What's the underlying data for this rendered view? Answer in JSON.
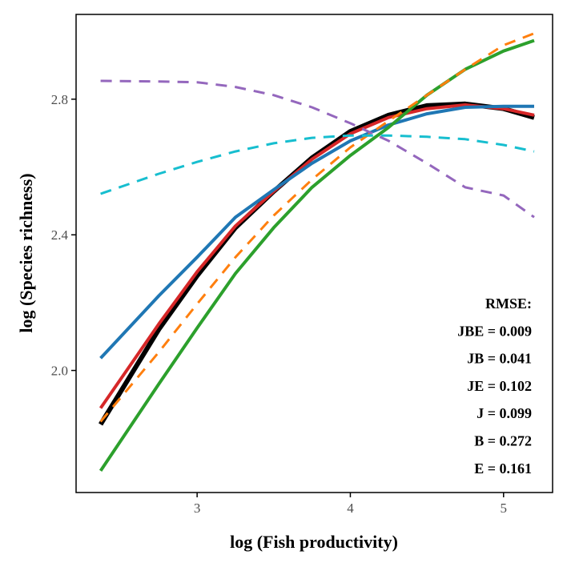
{
  "chart_data": {
    "type": "line",
    "xlabel": "log (Fish productivity)",
    "ylabel": "log (Species richness)",
    "xlim": [
      2.21,
      5.32
    ],
    "ylim": [
      1.64,
      3.05
    ],
    "xticks": [
      3,
      4,
      5
    ],
    "yticks": [
      2.0,
      2.4,
      2.8
    ],
    "xtick_labels": [
      "3",
      "4",
      "5"
    ],
    "ytick_labels": [
      "2.0",
      "2.4",
      "2.8"
    ],
    "grid": false,
    "x": [
      2.37,
      2.75,
      3.0,
      3.25,
      3.5,
      3.75,
      4.0,
      4.25,
      4.5,
      4.75,
      5.0,
      5.2
    ],
    "series": [
      {
        "color": "#000000",
        "style": "solid",
        "width": 6,
        "values": [
          1.841,
          2.121,
          2.279,
          2.421,
          2.528,
          2.627,
          2.705,
          2.753,
          2.781,
          2.786,
          2.772,
          2.746
        ]
      },
      {
        "color": "#d62728",
        "style": "solid",
        "width": 4,
        "values": [
          1.889,
          2.137,
          2.291,
          2.426,
          2.528,
          2.623,
          2.698,
          2.746,
          2.772,
          2.783,
          2.772,
          2.753
        ]
      },
      {
        "color": "#1f77b4",
        "style": "solid",
        "width": 4,
        "values": [
          2.036,
          2.22,
          2.334,
          2.452,
          2.533,
          2.611,
          2.677,
          2.724,
          2.757,
          2.776,
          2.779,
          2.779
        ]
      },
      {
        "color": "#2ca02c",
        "style": "solid",
        "width": 4,
        "values": [
          1.704,
          1.96,
          2.125,
          2.286,
          2.421,
          2.54,
          2.634,
          2.717,
          2.812,
          2.888,
          2.942,
          2.973
        ]
      },
      {
        "color": "#ff7f0e",
        "style": "dashed",
        "width": 3,
        "values": [
          1.849,
          2.054,
          2.196,
          2.334,
          2.457,
          2.563,
          2.658,
          2.736,
          2.812,
          2.888,
          2.959,
          2.994
        ]
      },
      {
        "color": "#17becf",
        "style": "dashed",
        "width": 3,
        "values": [
          2.521,
          2.58,
          2.615,
          2.646,
          2.67,
          2.686,
          2.693,
          2.693,
          2.689,
          2.682,
          2.665,
          2.646
        ]
      },
      {
        "color": "#9467bd",
        "style": "dashed",
        "width": 3,
        "values": [
          2.854,
          2.852,
          2.85,
          2.836,
          2.812,
          2.776,
          2.729,
          2.677,
          2.611,
          2.54,
          2.516,
          2.452
        ]
      }
    ],
    "annotations": [
      "RMSE:",
      "JBE = 0.009",
      "JB = 0.041",
      "JE = 0.102",
      "J = 0.099",
      "B = 0.272",
      "E = 0.161"
    ]
  }
}
